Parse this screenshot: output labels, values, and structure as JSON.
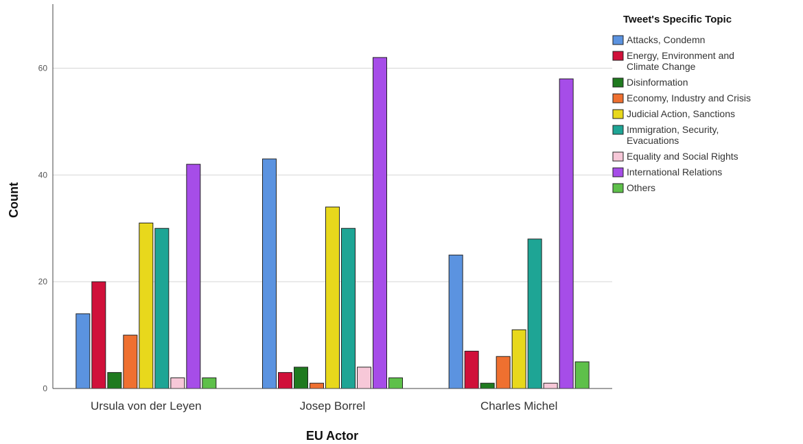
{
  "chart_data": {
    "type": "bar",
    "xlabel": "EU Actor",
    "ylabel": "Count",
    "ylim": [
      0,
      72
    ],
    "yticks": [
      0,
      20,
      40,
      60
    ],
    "grid": true,
    "legend_position": "right",
    "legend_title": "Tweet's Specific Topic",
    "categories": [
      "Ursula von der Leyen",
      "Josep Borrel",
      "Charles Michel"
    ],
    "series": [
      {
        "name": "Attacks, Condemn",
        "color": "#5b93e0",
        "values": [
          14,
          43,
          25
        ]
      },
      {
        "name": "Energy, Environment and Climate Change",
        "color": "#d0103a",
        "values": [
          20,
          3,
          7
        ]
      },
      {
        "name": "Disinformation",
        "color": "#1f7a1f",
        "values": [
          3,
          4,
          1
        ]
      },
      {
        "name": "Economy, Industry and Crisis",
        "color": "#ef7030",
        "values": [
          10,
          1,
          6
        ]
      },
      {
        "name": "Judicial Action, Sanctions",
        "color": "#e8d81c",
        "values": [
          31,
          34,
          11
        ]
      },
      {
        "name": "Immigration, Security, Evacuations",
        "color": "#1ea595",
        "values": [
          30,
          30,
          28
        ]
      },
      {
        "name": "Equality and Social Rights",
        "color": "#f7c8d8",
        "values": [
          2,
          4,
          1
        ]
      },
      {
        "name": "International Relations",
        "color": "#a64de8",
        "values": [
          42,
          62,
          58
        ]
      },
      {
        "name": "Others",
        "color": "#5ec04a",
        "values": [
          2,
          2,
          5
        ]
      }
    ]
  }
}
